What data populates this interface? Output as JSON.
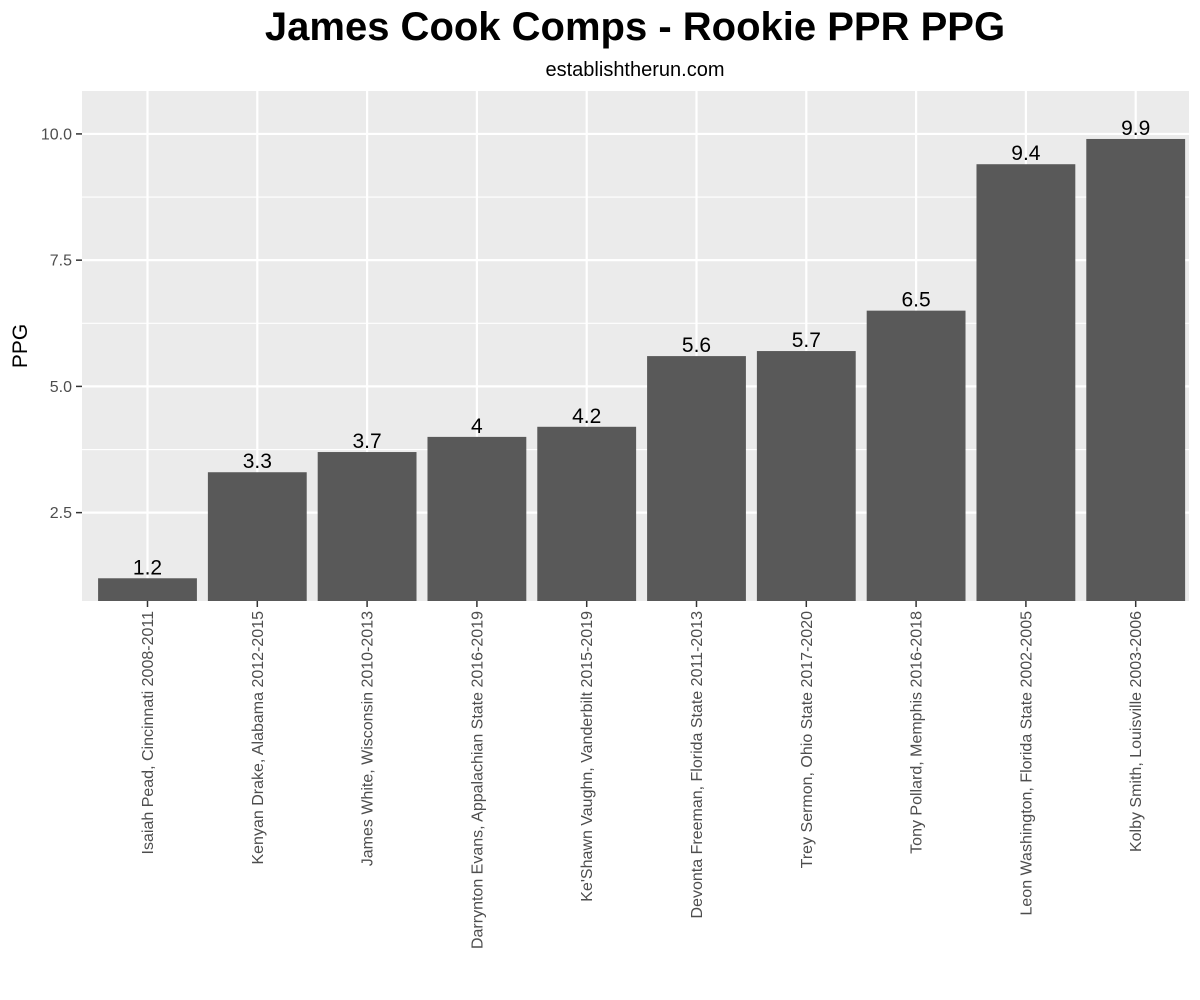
{
  "chart_data": {
    "type": "bar",
    "title": "James Cook Comps - Rookie PPR PPG",
    "subtitle": "establishtherun.com",
    "xlabel": "",
    "ylabel": "PPG",
    "ylim": [
      0.75,
      10.85
    ],
    "yticks": [
      2.5,
      5.0,
      7.5,
      10.0
    ],
    "ytick_labels": [
      "2.5",
      "5.0",
      "7.5",
      "10.0"
    ],
    "grid": true,
    "legend": "none",
    "categories": [
      "Isaiah Pead, Cincinnati 2008-2011",
      "Kenyan Drake, Alabama 2012-2015",
      "James White, Wisconsin 2010-2013",
      "Darrynton Evans, Appalachian State 2016-2019",
      "Ke'Shawn Vaughn, Vanderbilt 2015-2019",
      "Devonta Freeman, Florida State 2011-2013",
      "Trey Sermon, Ohio State 2017-2020",
      "Tony Pollard, Memphis 2016-2018",
      "Leon Washington, Florida State 2002-2005",
      "Kolby Smith, Louisville 2003-2006"
    ],
    "values": [
      1.2,
      3.3,
      3.7,
      4,
      4.2,
      5.6,
      5.7,
      6.5,
      9.4,
      9.9
    ],
    "value_labels": [
      "1.2",
      "3.3",
      "3.7",
      "4",
      "4.2",
      "5.6",
      "5.7",
      "6.5",
      "9.4",
      "9.9"
    ],
    "colors": {
      "bar": "#595959",
      "panel": "#ebebeb",
      "grid": "#ffffff",
      "tick": "#333333"
    }
  }
}
